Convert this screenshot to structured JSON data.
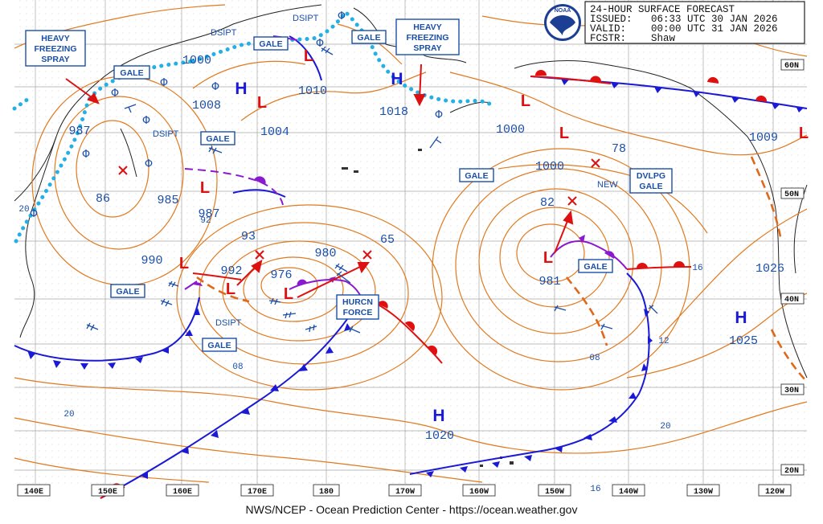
{
  "header": {
    "title": "24-HOUR SURFACE FORECAST",
    "issued_label": "ISSUED:",
    "issued": "06:33 UTC 30 JAN 2026",
    "valid_label": "VALID:",
    "valid": "00:00 UTC 31 JAN 2026",
    "fcstr_label": "FCSTR:",
    "fcstr": "Shaw",
    "logo_text": "NOAA"
  },
  "footer": "NWS/NCEP - Ocean Prediction Center - https://ocean.weather.gov",
  "lat_labels": [
    "60N",
    "50N",
    "40N",
    "30N",
    "20N"
  ],
  "lon_labels": [
    "140E",
    "150E",
    "160E",
    "170E",
    "180",
    "170W",
    "160W",
    "150W",
    "140W",
    "130W",
    "120W"
  ],
  "pressure_labels": [
    "1000",
    "987",
    "1008",
    "1010",
    "1018",
    "1004",
    "1000",
    "1009",
    "1000",
    "78",
    "86",
    "985",
    "987",
    "92",
    "93",
    "990",
    "992",
    "976",
    "980",
    "65",
    "82",
    "981",
    "1026",
    "1025",
    "08",
    "08",
    "12",
    "16",
    "20",
    "20",
    "20",
    "16",
    "1020"
  ],
  "highs": [
    "H",
    "H",
    "H",
    "H"
  ],
  "lows": [
    "L",
    "L",
    "L",
    "L",
    "L",
    "L",
    "L",
    "L",
    "L",
    "L"
  ],
  "warning_boxes": {
    "hfs_left": [
      "HEAVY",
      "FREEZING",
      "SPRAY"
    ],
    "hfs_right": [
      "HEAVY",
      "FREEZING",
      "SPRAY"
    ],
    "gale": "GALE",
    "hurcn": [
      "HURCN",
      "FORCE"
    ],
    "dvlpg": [
      "DVLPG",
      "GALE"
    ]
  },
  "annotations": {
    "dsipt": "DSIPT",
    "new": "NEW"
  },
  "colors": {
    "isobar": "#e07a1f",
    "cold_front": "#1a1ad6",
    "warm_front": "#e01010",
    "occluded_front": "#8a1ad0",
    "trough": "#e0681a",
    "ice_edge": "#22b0e6",
    "label_blue": "#1a4fa8",
    "low_red": "#dd1111",
    "grid": "#9a9a9a"
  }
}
